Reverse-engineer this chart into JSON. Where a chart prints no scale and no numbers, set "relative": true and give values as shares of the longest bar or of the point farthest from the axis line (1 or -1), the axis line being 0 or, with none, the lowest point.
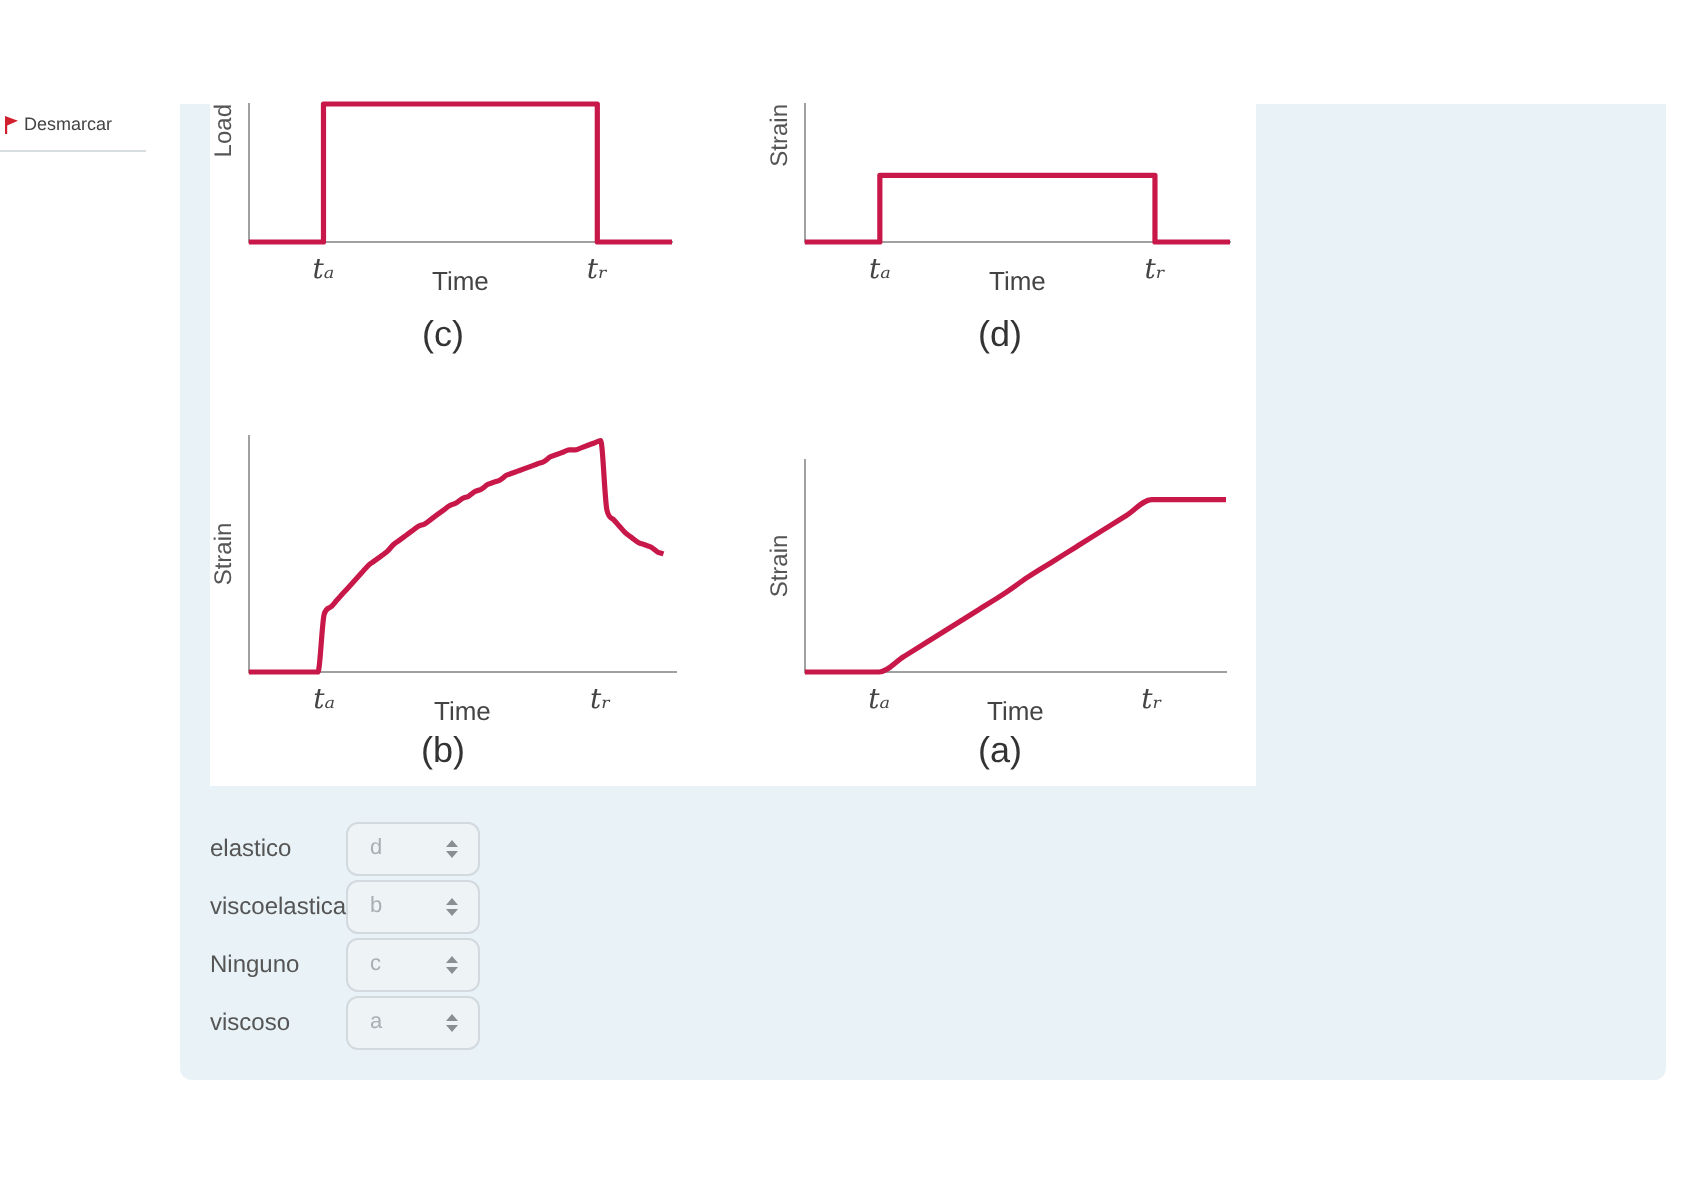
{
  "chart_data": [
    {
      "type": "step",
      "title": "(c)",
      "xlabel": "Time",
      "ylabel": "Load",
      "relative": true,
      "tick_labels": "x",
      "categories": [
        null,
        null,
        null,
        "tₐ",
        null,
        null,
        null,
        null,
        null,
        null,
        null,
        null,
        null,
        null,
        "tᵣ",
        null,
        null,
        null
      ],
      "values": [
        0,
        0,
        0,
        1,
        1,
        1,
        1,
        1,
        1,
        1,
        1,
        1,
        1,
        1,
        0,
        0,
        0,
        0
      ],
      "color": "#c8184a"
    },
    {
      "type": "step",
      "title": "(d)",
      "xlabel": "Time",
      "ylabel": "Strain",
      "relative": true,
      "tick_labels": "x",
      "categories": [
        null,
        null,
        null,
        "tₐ",
        null,
        null,
        null,
        null,
        null,
        null,
        null,
        null,
        null,
        null,
        "tᵣ",
        null,
        null,
        null
      ],
      "values": [
        0,
        0,
        0,
        1,
        1,
        1,
        1,
        1,
        1,
        1,
        1,
        1,
        1,
        1,
        0,
        0,
        0,
        0
      ],
      "color": "#c8184a"
    },
    {
      "type": "line",
      "title": "(b)",
      "xlabel": "Time",
      "ylabel": "Strain",
      "relative": true,
      "tick_labels": "x",
      "categories": [
        null,
        null,
        null,
        null,
        null,
        null,
        null,
        null,
        null,
        null,
        null,
        null,
        "tₐ",
        null,
        null,
        null,
        null,
        null,
        null,
        null,
        null,
        null,
        null,
        null,
        null,
        null,
        null,
        null,
        null,
        null,
        null,
        null,
        null,
        null,
        null,
        null,
        null,
        null,
        null,
        null,
        null,
        null,
        null,
        null,
        null,
        null,
        null,
        null,
        null,
        null,
        null,
        null,
        null,
        null,
        null,
        null,
        "tᵣ",
        null,
        null,
        null,
        null,
        null,
        null,
        null,
        null,
        null,
        null,
        null,
        null
      ],
      "values": [
        0,
        0,
        0,
        0,
        0,
        0,
        0,
        0,
        0,
        0,
        0,
        0,
        0.25,
        0.28,
        0.31,
        0.34,
        0.37,
        0.4,
        0.43,
        0.46,
        0.48,
        0.5,
        0.52,
        0.55,
        0.57,
        0.59,
        0.61,
        0.63,
        0.64,
        0.66,
        0.68,
        0.7,
        0.72,
        0.73,
        0.75,
        0.76,
        0.78,
        0.79,
        0.81,
        0.82,
        0.83,
        0.85,
        0.86,
        0.87,
        0.88,
        0.89,
        0.9,
        0.91,
        0.93,
        0.94,
        0.95,
        0.96,
        0.96,
        0.97,
        0.98,
        0.99,
        1,
        0.7,
        0.66,
        0.63,
        0.6,
        0.58,
        0.56,
        0.55,
        0.54,
        0.52,
        0.51,
        null,
        null
      ],
      "color": "#c8184a"
    },
    {
      "type": "line",
      "title": "(a)",
      "xlabel": "Time",
      "ylabel": "Strain",
      "relative": true,
      "tick_labels": "x",
      "categories": [
        null,
        null,
        null,
        "tₐ",
        null,
        null,
        null,
        null,
        null,
        null,
        null,
        null,
        null,
        null,
        "tᵣ",
        null,
        null,
        null
      ],
      "values": [
        0,
        0,
        0,
        0,
        0.09,
        0.18,
        0.27,
        0.36,
        0.45,
        0.55,
        0.64,
        0.73,
        0.82,
        0.91,
        1,
        1,
        1,
        1
      ],
      "color": "#c8184a"
    },
    {
      "type": "other",
      "annotations": [
        "Desmarcar",
        "elastico",
        "d",
        "viscoelastica",
        "b",
        "Ninguno",
        "c",
        "viscoso",
        "a"
      ]
    }
  ]
}
